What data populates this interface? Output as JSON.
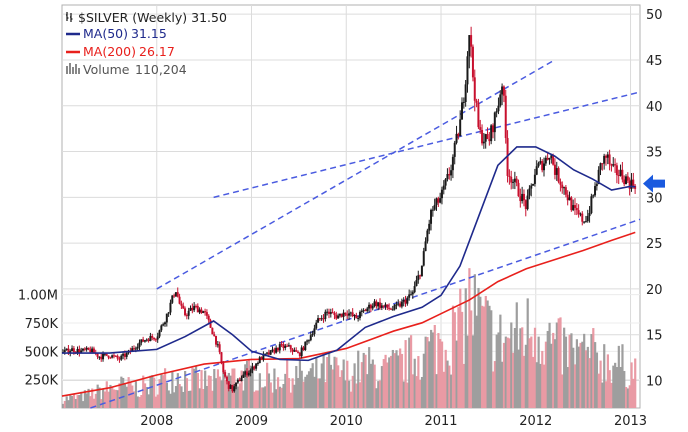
{
  "chart_data": {
    "type": "line",
    "title": "$SILVER (Weekly) 31.50",
    "title_icon": "price-chart-icon",
    "legend": [
      {
        "name": "MA(50)",
        "value": "31.15",
        "color": "#1f2a8c"
      },
      {
        "name": "MA(200)",
        "value": "26.17",
        "color": "#e8201c"
      },
      {
        "name": "Volume",
        "value": "110,204",
        "color": "#888888"
      }
    ],
    "colors": {
      "up": "#1a1a1a",
      "down": "#c8102e",
      "channel": "#4a5be0",
      "arrow": "#1a5adf",
      "grid": "#dcdcdc"
    },
    "x_ticks": [
      {
        "year": 2008,
        "label": "2008"
      },
      {
        "year": 2009,
        "label": "2009"
      },
      {
        "year": 2010,
        "label": "2010"
      },
      {
        "year": 2011,
        "label": "2011"
      },
      {
        "year": 2012,
        "label": "2012"
      },
      {
        "year": 2013,
        "label": "2013"
      }
    ],
    "xlim": [
      2007.0,
      2013.1
    ],
    "ylim": [
      7,
      51
    ],
    "y_ticks": [
      10,
      15,
      20,
      25,
      30,
      35,
      40,
      45,
      50
    ],
    "volume_ticks": [
      {
        "label": "1.00M",
        "value": 1000000
      },
      {
        "label": "750K",
        "value": 750000
      },
      {
        "label": "500K",
        "value": 500000
      },
      {
        "label": "250K",
        "value": 250000
      }
    ],
    "volume_max": 1350000,
    "price_series": {
      "name": "$SILVER weekly close",
      "x": [
        2007.0,
        2007.1,
        2007.2,
        2007.3,
        2007.4,
        2007.5,
        2007.6,
        2007.7,
        2007.8,
        2007.9,
        2008.0,
        2008.1,
        2008.2,
        2008.25,
        2008.3,
        2008.4,
        2008.5,
        2008.55,
        2008.6,
        2008.65,
        2008.7,
        2008.75,
        2008.8,
        2008.9,
        2009.0,
        2009.1,
        2009.2,
        2009.3,
        2009.4,
        2009.5,
        2009.6,
        2009.7,
        2009.8,
        2009.9,
        2010.0,
        2010.1,
        2010.2,
        2010.3,
        2010.4,
        2010.5,
        2010.6,
        2010.7,
        2010.8,
        2010.85,
        2010.9,
        2011.0,
        2011.1,
        2011.2,
        2011.25,
        2011.3,
        2011.33,
        2011.4,
        2011.5,
        2011.6,
        2011.65,
        2011.7,
        2011.75,
        2011.8,
        2011.9,
        2012.0,
        2012.1,
        2012.15,
        2012.2,
        2012.3,
        2012.4,
        2012.5,
        2012.55,
        2012.6,
        2012.7,
        2012.75,
        2012.8,
        2012.9,
        2013.0,
        2013.05
      ],
      "y": [
        13.0,
        13.4,
        13.2,
        13.3,
        12.6,
        12.8,
        12.3,
        13.0,
        14.0,
        14.6,
        14.8,
        17.0,
        20.0,
        18.0,
        17.2,
        18.0,
        17.5,
        16.3,
        15.0,
        13.5,
        11.0,
        9.5,
        9.0,
        10.5,
        11.2,
        12.5,
        13.0,
        13.7,
        13.6,
        12.8,
        14.5,
        16.5,
        17.5,
        17.0,
        17.5,
        16.8,
        17.7,
        18.5,
        18.0,
        17.8,
        18.5,
        19.5,
        22.5,
        26.0,
        28.5,
        30.0,
        33.0,
        38.0,
        42.0,
        48.5,
        44.0,
        37.0,
        36.0,
        40.0,
        43.0,
        33.0,
        32.0,
        31.0,
        29.0,
        33.0,
        34.0,
        35.0,
        33.0,
        31.0,
        28.5,
        27.5,
        28.0,
        30.0,
        34.0,
        34.5,
        33.0,
        32.5,
        31.5,
        31.5
      ]
    },
    "ma50": {
      "name": "MA(50)",
      "x": [
        2007.0,
        2007.5,
        2008.0,
        2008.3,
        2008.6,
        2008.8,
        2009.0,
        2009.3,
        2009.6,
        2009.9,
        2010.2,
        2010.5,
        2010.8,
        2011.0,
        2011.2,
        2011.4,
        2011.6,
        2011.8,
        2012.0,
        2012.2,
        2012.4,
        2012.6,
        2012.8,
        2013.0,
        2013.05
      ],
      "y": [
        13.0,
        13.0,
        13.4,
        14.8,
        16.5,
        15.0,
        13.2,
        12.3,
        12.2,
        13.3,
        15.8,
        17.0,
        18.0,
        19.3,
        22.5,
        28.0,
        33.5,
        35.5,
        35.5,
        34.5,
        33.0,
        32.0,
        30.8,
        31.2,
        31.15
      ]
    },
    "ma200": {
      "name": "MA(200)",
      "x": [
        2007.0,
        2007.5,
        2008.0,
        2008.5,
        2009.0,
        2009.5,
        2010.0,
        2010.5,
        2010.8,
        2011.0,
        2011.3,
        2011.6,
        2011.9,
        2012.2,
        2012.5,
        2012.8,
        2013.0,
        2013.05
      ],
      "y": [
        8.3,
        9.2,
        10.6,
        11.8,
        12.3,
        12.4,
        13.5,
        15.4,
        16.3,
        17.3,
        18.8,
        20.8,
        22.2,
        23.2,
        24.2,
        25.3,
        26.0,
        26.17
      ]
    },
    "volume": {
      "x": [
        2007.0,
        2007.2,
        2007.4,
        2007.6,
        2007.8,
        2008.0,
        2008.2,
        2008.4,
        2008.6,
        2008.8,
        2009.0,
        2009.2,
        2009.4,
        2009.6,
        2009.8,
        2010.0,
        2010.2,
        2010.4,
        2010.6,
        2010.8,
        2011.0,
        2011.2,
        2011.3,
        2011.4,
        2011.6,
        2011.8,
        2012.0,
        2012.2,
        2012.4,
        2012.6,
        2012.8,
        2013.0
      ],
      "y": [
        80000,
        100000,
        150000,
        200000,
        180000,
        220000,
        300000,
        250000,
        230000,
        280000,
        300000,
        260000,
        300000,
        280000,
        350000,
        300000,
        380000,
        330000,
        400000,
        500000,
        600000,
        700000,
        950000,
        800000,
        600000,
        650000,
        750000,
        550000,
        500000,
        480000,
        420000,
        350000
      ]
    },
    "channel_lines": [
      {
        "x": [
          2007.3,
          2013.1
        ],
        "y": [
          7.0,
          27.6
        ]
      },
      {
        "x": [
          2008.0,
          2012.2
        ],
        "y": [
          20.0,
          45.0
        ]
      },
      {
        "x": [
          2008.6,
          2013.1
        ],
        "y": [
          30.0,
          41.5
        ]
      }
    ],
    "arrow_target": {
      "x": 2013.1,
      "y": 31.5
    }
  }
}
